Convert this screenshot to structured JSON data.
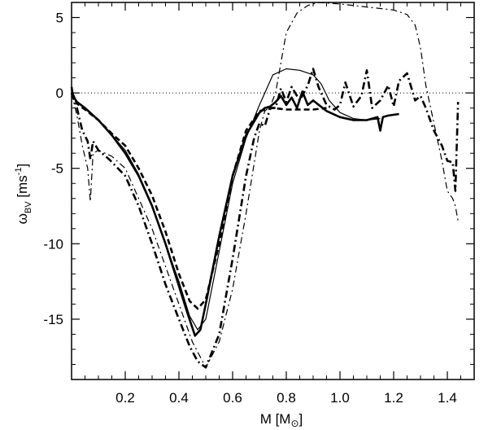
{
  "chart_data": {
    "type": "line",
    "xlabel": "M [M",
    "xlabel_unit_suffix": "]",
    "xlabel_symbol": "⊙",
    "ylabel_main": "ω",
    "ylabel_sub": "BV",
    "ylabel_unit": " [ms",
    "ylabel_unit_exp": "-1",
    "ylabel_unit_end": "]",
    "xlim": [
      0.0,
      1.5
    ],
    "ylim": [
      -19.0,
      6.0
    ],
    "xticks": [
      0.2,
      0.4,
      0.6,
      0.8,
      1.0,
      1.2,
      1.4
    ],
    "xtick_labels": [
      "0.2",
      "0.4",
      "0.6",
      "0.8",
      "1.0",
      "1.2",
      "1.4"
    ],
    "yticks": [
      5,
      0,
      -5,
      -10,
      -15
    ],
    "ytick_labels": [
      "5",
      "0",
      "-5",
      "-10",
      "-15"
    ],
    "zero_line": {
      "y": 0,
      "style": "dotted"
    },
    "grid": false,
    "series": [
      {
        "style": "solid",
        "weight": "thick",
        "x": [
          0.0,
          0.005,
          0.02,
          0.05,
          0.1,
          0.15,
          0.2,
          0.25,
          0.3,
          0.35,
          0.4,
          0.43,
          0.46,
          0.48,
          0.5,
          0.55,
          0.6,
          0.65,
          0.7,
          0.72,
          0.74,
          0.76,
          0.78,
          0.8,
          0.82,
          0.84,
          0.86,
          0.88,
          0.9,
          0.95,
          1.0,
          1.05,
          1.1,
          1.14,
          1.15,
          1.16,
          1.18,
          1.22
        ],
        "y": [
          0.4,
          -0.2,
          -0.6,
          -1.0,
          -1.8,
          -2.8,
          -4.0,
          -5.5,
          -7.5,
          -10.0,
          -12.8,
          -14.5,
          -16.1,
          -15.7,
          -14.0,
          -9.5,
          -5.5,
          -2.8,
          -1.3,
          -1.0,
          -0.9,
          -0.6,
          -0.2,
          -0.8,
          -0.3,
          -1.0,
          0.1,
          -0.8,
          -0.5,
          -1.2,
          -1.6,
          -1.8,
          -1.8,
          -1.6,
          -2.5,
          -1.6,
          -1.5,
          -1.4
        ]
      },
      {
        "style": "solid",
        "weight": "thin",
        "x": [
          0.0,
          0.02,
          0.05,
          0.1,
          0.15,
          0.2,
          0.25,
          0.3,
          0.35,
          0.4,
          0.44,
          0.47,
          0.5,
          0.55,
          0.6,
          0.65,
          0.7,
          0.72,
          0.75,
          0.8,
          0.85,
          0.9,
          0.93,
          0.96,
          1.0,
          1.05,
          1.1,
          1.15
        ],
        "y": [
          0.2,
          -0.6,
          -1.0,
          -1.8,
          -2.8,
          -3.8,
          -5.4,
          -7.4,
          -10.0,
          -12.5,
          -14.8,
          -15.7,
          -15.0,
          -10.5,
          -6.0,
          -3.0,
          -0.8,
          0.0,
          1.2,
          1.6,
          1.5,
          1.2,
          0.6,
          -0.5,
          -1.3,
          -1.7,
          -1.8,
          -1.7
        ]
      },
      {
        "style": "dashed",
        "weight": "thick",
        "x": [
          0.0,
          0.02,
          0.05,
          0.1,
          0.15,
          0.2,
          0.25,
          0.3,
          0.35,
          0.4,
          0.44,
          0.47,
          0.5,
          0.55,
          0.6,
          0.65,
          0.7,
          0.75,
          0.8,
          0.85,
          0.9,
          0.95
        ],
        "y": [
          0.0,
          -0.7,
          -1.1,
          -1.8,
          -2.7,
          -3.5,
          -5.0,
          -6.8,
          -9.2,
          -12.0,
          -13.8,
          -14.3,
          -13.7,
          -10.0,
          -5.5,
          -2.5,
          -1.2,
          -1.0,
          -1.1,
          -1.1,
          -1.1,
          -1.0
        ]
      },
      {
        "style": "dashdot",
        "weight": "thick",
        "x": [
          0.0,
          0.02,
          0.04,
          0.06,
          0.07,
          0.08,
          0.1,
          0.14,
          0.2,
          0.25,
          0.3,
          0.35,
          0.4,
          0.44,
          0.47,
          0.5,
          0.55,
          0.6,
          0.65,
          0.68,
          0.7,
          0.72,
          0.74,
          0.76,
          0.78,
          0.8,
          0.82,
          0.85,
          0.88,
          0.9,
          0.92,
          0.95,
          0.98,
          1.0,
          1.02,
          1.05,
          1.08,
          1.1,
          1.12,
          1.15,
          1.18,
          1.2,
          1.22,
          1.25,
          1.28,
          1.3,
          1.32,
          1.35,
          1.38,
          1.4,
          1.42,
          1.43,
          1.44
        ],
        "y": [
          0.0,
          -1.0,
          -2.5,
          -3.2,
          -4.4,
          -3.2,
          -3.8,
          -4.4,
          -5.5,
          -7.5,
          -10.0,
          -12.7,
          -15.0,
          -16.8,
          -17.8,
          -18.2,
          -16.0,
          -11.0,
          -5.5,
          -3.0,
          -2.0,
          -2.2,
          -1.0,
          -1.0,
          0.3,
          -0.6,
          0.4,
          -0.5,
          0.5,
          1.6,
          0.4,
          -0.8,
          -1.1,
          -0.8,
          0.7,
          -0.9,
          -0.2,
          1.5,
          -1.0,
          -0.5,
          0.5,
          -0.9,
          0.8,
          1.3,
          -0.5,
          -0.2,
          -1.0,
          -2.5,
          -3.5,
          -4.5,
          -4.6,
          -6.5,
          -0.6
        ]
      },
      {
        "style": "dashdot",
        "weight": "thin",
        "x": [
          0.0,
          0.02,
          0.04,
          0.06,
          0.07,
          0.08,
          0.1,
          0.15,
          0.2,
          0.3,
          0.4,
          0.45,
          0.5,
          0.55,
          0.6,
          0.65,
          0.7,
          0.72,
          0.74,
          0.76,
          0.78,
          0.8,
          0.84,
          0.88,
          0.92,
          1.0,
          1.1,
          1.2,
          1.25,
          1.28,
          1.3,
          1.32,
          1.35,
          1.38,
          1.4,
          1.42,
          1.43,
          1.44
        ],
        "y": [
          0.0,
          -1.5,
          -3.5,
          -5.0,
          -7.2,
          -4.0,
          -3.8,
          -4.2,
          -5.0,
          -9.0,
          -14.0,
          -16.5,
          -18.2,
          -16.5,
          -13.0,
          -8.0,
          -2.5,
          -1.2,
          -0.9,
          0.0,
          2.0,
          4.0,
          5.3,
          5.8,
          6.0,
          5.9,
          5.7,
          5.5,
          5.2,
          4.5,
          3.0,
          0.5,
          -2.0,
          -4.5,
          -6.5,
          -7.0,
          -7.5,
          -8.5
        ]
      }
    ]
  }
}
